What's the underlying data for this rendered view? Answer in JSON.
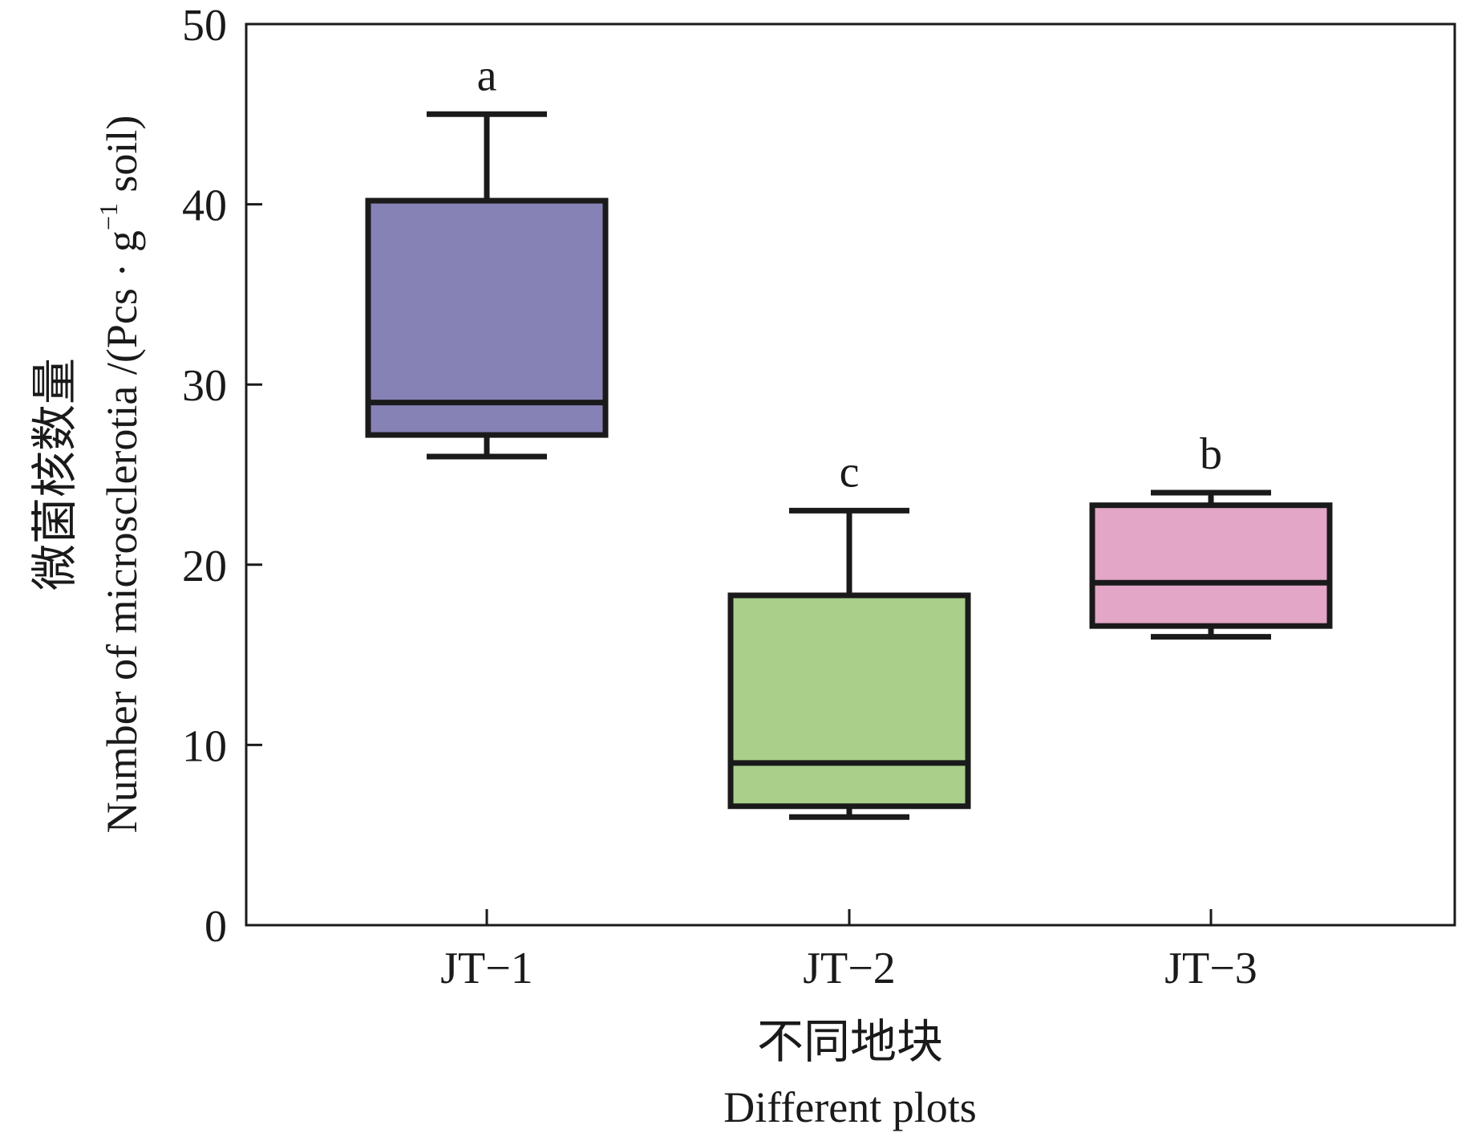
{
  "chart_data": {
    "type": "box",
    "title": "",
    "xlabel_cn": "不同地块",
    "xlabel_en": "Different plots",
    "ylabel_cn": "微菌核数量",
    "ylabel_en_main": "Number of microsclerotia /(Pcs · g",
    "ylabel_en_sup": "−1",
    "ylabel_en_tail": " soil)",
    "ylim": [
      0,
      50
    ],
    "yticks": [
      "0",
      "10",
      "20",
      "30",
      "40",
      "50"
    ],
    "categories": [
      "JT−1",
      "JT−2",
      "JT−3"
    ],
    "boxes": [
      {
        "category": "JT−1",
        "whisker_low": 26,
        "q1": 27.2,
        "median": 29,
        "q3": 40.2,
        "whisker_high": 45,
        "letter": "a",
        "color": "#8782b6"
      },
      {
        "category": "JT−2",
        "whisker_low": 6,
        "q1": 6.6,
        "median": 9,
        "q3": 18.3,
        "whisker_high": 23,
        "letter": "c",
        "color": "#a9cf8b"
      },
      {
        "category": "JT−3",
        "whisker_low": 16,
        "q1": 16.6,
        "median": 19,
        "q3": 23.3,
        "whisker_high": 24,
        "letter": "b",
        "color": "#e3a6c6"
      }
    ],
    "grid": false,
    "legend": "none"
  }
}
